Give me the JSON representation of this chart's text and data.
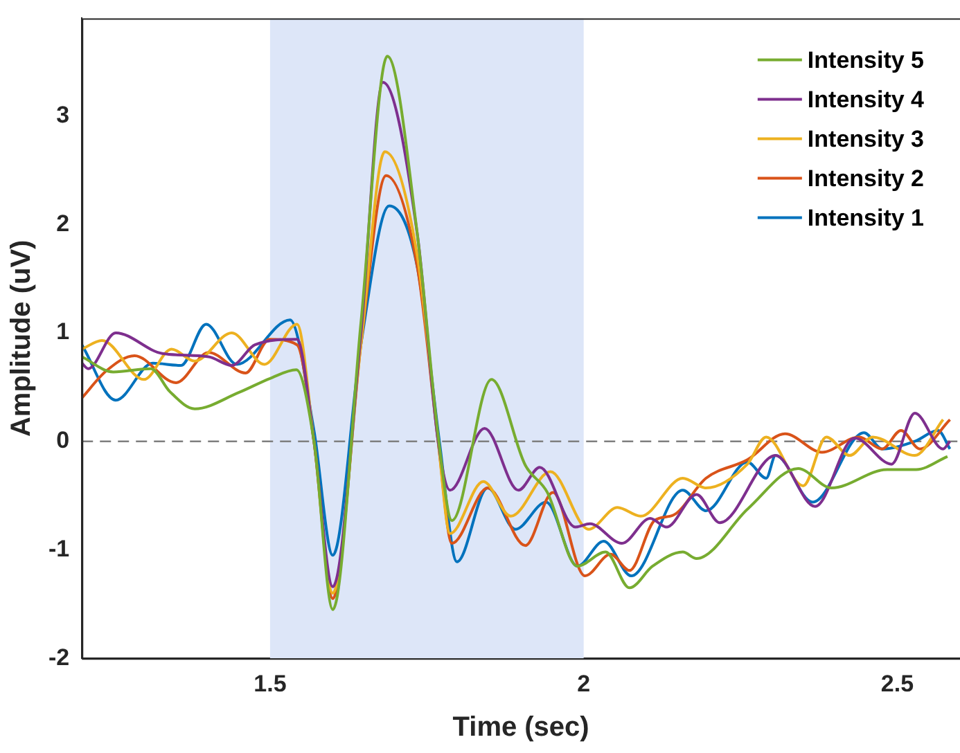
{
  "chart_data": {
    "type": "line",
    "xlabel": "Time (sec)",
    "ylabel": "Amplitude (uV)",
    "xlim": [
      1.2,
      2.6
    ],
    "ylim": [
      -2,
      3.9
    ],
    "xticks": [
      1.5,
      2,
      2.5
    ],
    "yticks": [
      -2,
      -1,
      0,
      1,
      2,
      3
    ],
    "grid": false,
    "legend": "top right",
    "marker": "none",
    "line_style": "solid",
    "ref_lines": [
      {
        "axis": "y",
        "value": 0,
        "color": "#7f7f7f",
        "line_style": "dashed"
      }
    ],
    "bands": [
      {
        "axis": "x",
        "from": 1.5,
        "to": 2,
        "color": "#dde6f8"
      }
    ],
    "series": [
      {
        "name": "Intensity 5",
        "color": "#77ac30",
        "x": [
          1.2,
          1.25,
          1.31,
          1.34,
          1.38,
          1.45,
          1.5,
          1.542,
          1.57,
          1.6,
          1.645,
          1.687,
          1.735,
          1.769,
          1.79,
          1.853,
          1.907,
          1.942,
          1.99,
          2.035,
          2.073,
          2.11,
          2.158,
          2.18,
          2.262,
          2.342,
          2.395,
          2.484,
          2.53,
          2.58
        ],
        "values": [
          0.78,
          0.64,
          0.67,
          0.46,
          0.3,
          0.45,
          0.58,
          0.66,
          0.0,
          -1.55,
          1.1,
          3.55,
          1.9,
          0.0,
          -0.73,
          0.57,
          -0.22,
          -0.47,
          -1.15,
          -1.02,
          -1.35,
          -1.15,
          -1.02,
          -1.08,
          -0.62,
          -0.25,
          -0.43,
          -0.26,
          -0.26,
          -0.14
        ]
      },
      {
        "name": "Intensity 4",
        "color": "#7e2f8e",
        "x": [
          1.2,
          1.21,
          1.254,
          1.328,
          1.402,
          1.439,
          1.476,
          1.543,
          1.57,
          1.6,
          1.645,
          1.68,
          1.735,
          1.768,
          1.787,
          1.842,
          1.896,
          1.93,
          1.987,
          2.01,
          2.061,
          2.106,
          2.132,
          2.18,
          2.217,
          2.306,
          2.369,
          2.432,
          2.491,
          2.528,
          2.573,
          2.584
        ],
        "values": [
          0.72,
          0.67,
          1.0,
          0.81,
          0.78,
          0.7,
          0.89,
          0.94,
          0.0,
          -1.34,
          1.0,
          3.31,
          1.9,
          0.0,
          -0.45,
          0.12,
          -0.45,
          -0.24,
          -0.79,
          -0.76,
          -0.94,
          -0.71,
          -0.79,
          -0.49,
          -0.75,
          -0.13,
          -0.6,
          0.03,
          -0.21,
          0.26,
          -0.07,
          0.0
        ]
      },
      {
        "name": "Intensity 3",
        "color": "#edb120",
        "x": [
          1.2,
          1.232,
          1.299,
          1.343,
          1.38,
          1.439,
          1.491,
          1.543,
          1.57,
          1.6,
          1.645,
          1.683,
          1.735,
          1.768,
          1.787,
          1.84,
          1.884,
          1.947,
          2.008,
          2.054,
          2.091,
          2.158,
          2.195,
          2.261,
          2.291,
          2.35,
          2.387,
          2.424,
          2.461,
          2.528,
          2.573
        ],
        "values": [
          0.85,
          0.93,
          0.57,
          0.85,
          0.74,
          1.0,
          0.71,
          1.08,
          0.0,
          -1.4,
          0.9,
          2.67,
          1.7,
          0.0,
          -0.85,
          -0.37,
          -0.69,
          -0.28,
          -0.81,
          -0.61,
          -0.69,
          -0.34,
          -0.43,
          -0.21,
          0.04,
          -0.41,
          0.04,
          -0.13,
          0.04,
          -0.13,
          0.2
        ]
      },
      {
        "name": "Intensity 2",
        "color": "#d95319",
        "x": [
          1.2,
          1.239,
          1.284,
          1.35,
          1.402,
          1.461,
          1.499,
          1.543,
          1.57,
          1.6,
          1.645,
          1.685,
          1.735,
          1.768,
          1.79,
          1.847,
          1.907,
          1.951,
          2.002,
          2.043,
          2.073,
          2.113,
          2.143,
          2.195,
          2.261,
          2.321,
          2.38,
          2.439,
          2.476,
          2.506,
          2.536,
          2.584
        ],
        "values": [
          0.4,
          0.65,
          0.79,
          0.54,
          0.82,
          0.63,
          0.94,
          0.89,
          0.0,
          -1.45,
          0.9,
          2.45,
          1.6,
          0.0,
          -0.94,
          -0.43,
          -0.96,
          -0.47,
          -1.24,
          -1.04,
          -1.19,
          -0.73,
          -0.68,
          -0.34,
          -0.17,
          0.07,
          -0.1,
          0.04,
          -0.07,
          0.1,
          -0.07,
          0.2
        ]
      },
      {
        "name": "Intensity 1",
        "color": "#0072bd",
        "x": [
          1.2,
          1.254,
          1.313,
          1.358,
          1.398,
          1.447,
          1.532,
          1.57,
          1.6,
          1.645,
          1.69,
          1.735,
          1.77,
          1.798,
          1.847,
          1.891,
          1.94,
          1.99,
          2.032,
          2.076,
          2.158,
          2.195,
          2.261,
          2.291,
          2.306,
          2.365,
          2.447,
          2.476,
          2.528,
          2.565,
          2.584
        ],
        "values": [
          0.89,
          0.38,
          0.72,
          0.7,
          1.08,
          0.71,
          1.12,
          0.1,
          -1.05,
          0.9,
          2.17,
          1.6,
          0.0,
          -1.11,
          -0.43,
          -0.81,
          -0.56,
          -1.15,
          -0.92,
          -1.24,
          -0.45,
          -0.64,
          -0.19,
          -0.34,
          -0.13,
          -0.56,
          0.08,
          -0.07,
          0.0,
          0.1,
          -0.07
        ]
      }
    ]
  }
}
